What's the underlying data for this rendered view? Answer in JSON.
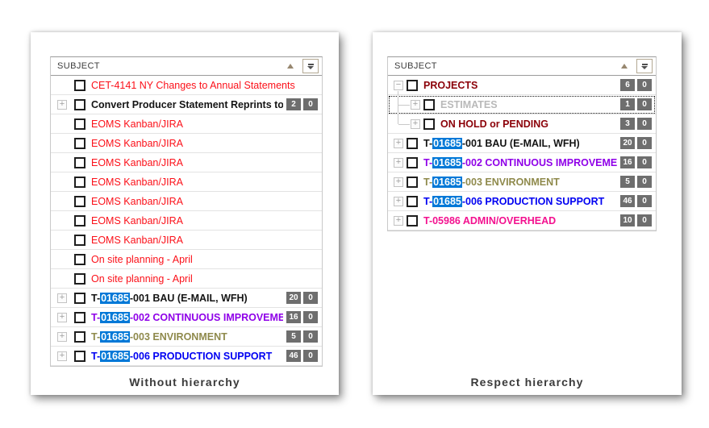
{
  "colors": {
    "highlight_bg": "#0078d7",
    "highlight_text": "#ffffff",
    "badge_bg": "#6e6e6e",
    "badge_text": "#ffffff"
  },
  "panels": [
    {
      "caption": "Without hierarchy",
      "header": {
        "label": "SUBJECT",
        "sort_icon": "sort-ascending-triangle",
        "filter_icon": "filter-dropdown"
      },
      "rows": [
        {
          "level": 0,
          "expand": null,
          "color": "#fb1019",
          "bold": false,
          "parts": [
            {
              "text": "CET-4141  NY Changes to Annual Statements"
            }
          ],
          "badges": []
        },
        {
          "level": 0,
          "expand": "plus",
          "color": "#141414",
          "bold": true,
          "parts": [
            {
              "text": "Convert Producer Statement Reprints to"
            }
          ],
          "badges": [
            "2",
            "0"
          ]
        },
        {
          "level": 0,
          "expand": null,
          "color": "#fb1019",
          "bold": false,
          "parts": [
            {
              "text": "EOMS Kanban/JIRA"
            }
          ],
          "badges": []
        },
        {
          "level": 0,
          "expand": null,
          "color": "#fb1019",
          "bold": false,
          "parts": [
            {
              "text": "EOMS Kanban/JIRA"
            }
          ],
          "badges": []
        },
        {
          "level": 0,
          "expand": null,
          "color": "#fb1019",
          "bold": false,
          "parts": [
            {
              "text": "EOMS Kanban/JIRA"
            }
          ],
          "badges": []
        },
        {
          "level": 0,
          "expand": null,
          "color": "#fb1019",
          "bold": false,
          "parts": [
            {
              "text": "EOMS Kanban/JIRA"
            }
          ],
          "badges": []
        },
        {
          "level": 0,
          "expand": null,
          "color": "#fb1019",
          "bold": false,
          "parts": [
            {
              "text": "EOMS Kanban/JIRA"
            }
          ],
          "badges": []
        },
        {
          "level": 0,
          "expand": null,
          "color": "#fb1019",
          "bold": false,
          "parts": [
            {
              "text": "EOMS Kanban/JIRA"
            }
          ],
          "badges": []
        },
        {
          "level": 0,
          "expand": null,
          "color": "#fb1019",
          "bold": false,
          "parts": [
            {
              "text": "EOMS Kanban/JIRA"
            }
          ],
          "badges": []
        },
        {
          "level": 0,
          "expand": null,
          "color": "#fb1019",
          "bold": false,
          "parts": [
            {
              "text": "On site planning - April"
            }
          ],
          "badges": []
        },
        {
          "level": 0,
          "expand": null,
          "color": "#fb1019",
          "bold": false,
          "parts": [
            {
              "text": "On site planning - April"
            }
          ],
          "badges": []
        },
        {
          "level": 0,
          "expand": "plus",
          "color": "#141414",
          "bold": true,
          "parts": [
            {
              "text": "T-"
            },
            {
              "text": "01685",
              "highlight": true
            },
            {
              "text": "-001 BAU (E-MAIL, WFH)"
            }
          ],
          "badges": [
            "20",
            "0"
          ]
        },
        {
          "level": 0,
          "expand": "plus",
          "color": "#8f00e8",
          "bold": true,
          "parts": [
            {
              "text": "T-"
            },
            {
              "text": "01685",
              "highlight": true
            },
            {
              "text": "-002 CONTINUOUS IMPROVEME"
            }
          ],
          "badges": [
            "16",
            "0"
          ]
        },
        {
          "level": 0,
          "expand": "plus",
          "color": "#8f8a4c",
          "bold": true,
          "parts": [
            {
              "text": "T-"
            },
            {
              "text": "01685",
              "highlight": true
            },
            {
              "text": "-003 ENVIRONMENT"
            }
          ],
          "badges": [
            "5",
            "0"
          ]
        },
        {
          "level": 0,
          "expand": "plus",
          "color": "#0000f2",
          "bold": true,
          "parts": [
            {
              "text": "T-"
            },
            {
              "text": "01685",
              "highlight": true
            },
            {
              "text": "-006 PRODUCTION SUPPORT"
            }
          ],
          "badges": [
            "46",
            "0"
          ]
        }
      ]
    },
    {
      "caption": "Respect hierarchy",
      "header": {
        "label": "SUBJECT",
        "sort_icon": "sort-ascending-triangle",
        "filter_icon": "filter-dropdown"
      },
      "rows": [
        {
          "level": 0,
          "expand": "minus",
          "color": "#8b0008",
          "bold": true,
          "parts": [
            {
              "text": "PROJECTS"
            }
          ],
          "badges": [
            "6",
            "0"
          ]
        },
        {
          "level": 1,
          "expand": "plus",
          "color": "#b9b9b9",
          "bold": true,
          "focused": true,
          "parts": [
            {
              "text": "ESTIMATES"
            }
          ],
          "badges": [
            "1",
            "0"
          ]
        },
        {
          "level": 1,
          "expand": "plus",
          "color": "#8b0008",
          "bold": true,
          "parts": [
            {
              "text": "ON HOLD or PENDING"
            }
          ],
          "badges": [
            "3",
            "0"
          ]
        },
        {
          "level": 0,
          "expand": "plus",
          "color": "#141414",
          "bold": true,
          "parts": [
            {
              "text": "T-"
            },
            {
              "text": "01685",
              "highlight": true
            },
            {
              "text": "-001 BAU (E-MAIL, WFH)"
            }
          ],
          "badges": [
            "20",
            "0"
          ]
        },
        {
          "level": 0,
          "expand": "plus",
          "color": "#8f00e8",
          "bold": true,
          "parts": [
            {
              "text": "T-"
            },
            {
              "text": "01685",
              "highlight": true
            },
            {
              "text": "-002 CONTINUOUS IMPROVEME"
            }
          ],
          "badges": [
            "16",
            "0"
          ]
        },
        {
          "level": 0,
          "expand": "plus",
          "color": "#8f8a4c",
          "bold": true,
          "parts": [
            {
              "text": "T-"
            },
            {
              "text": "01685",
              "highlight": true
            },
            {
              "text": "-003 ENVIRONMENT"
            }
          ],
          "badges": [
            "5",
            "0"
          ]
        },
        {
          "level": 0,
          "expand": "plus",
          "color": "#0000f2",
          "bold": true,
          "parts": [
            {
              "text": "T-"
            },
            {
              "text": "01685",
              "highlight": true
            },
            {
              "text": "-006 PRODUCTION SUPPORT"
            }
          ],
          "badges": [
            "46",
            "0"
          ]
        },
        {
          "level": 0,
          "expand": "plus",
          "color": "#f3118f",
          "bold": true,
          "parts": [
            {
              "text": "T-05986 ADMIN/OVERHEAD"
            }
          ],
          "badges": [
            "10",
            "0"
          ]
        }
      ]
    }
  ]
}
